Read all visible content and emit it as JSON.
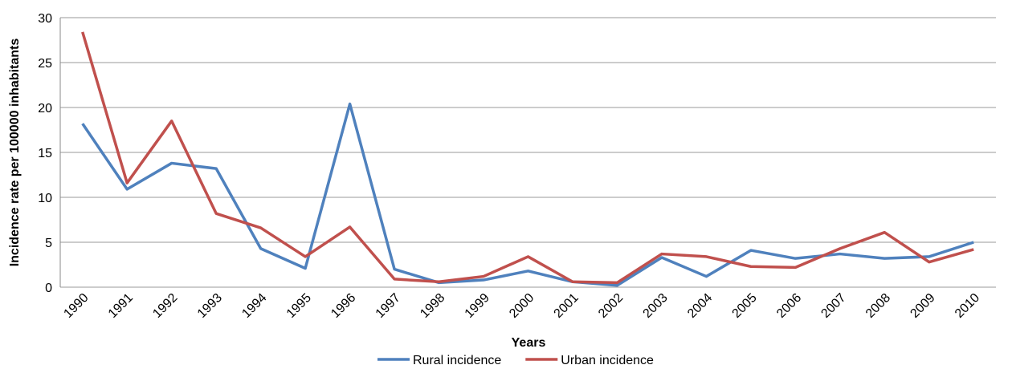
{
  "chart_data": {
    "type": "line",
    "x_label": "Years",
    "y_label": "Incidence rate per 100000 inhabitants",
    "categories": [
      "1990",
      "1991",
      "1992",
      "1993",
      "1994",
      "1995",
      "1996",
      "1997",
      "1998",
      "1999",
      "2000",
      "2001",
      "2002",
      "2003",
      "2004",
      "2005",
      "2006",
      "2007",
      "2008",
      "2009",
      "2010"
    ],
    "series": [
      {
        "name": "Rural incidence",
        "color": "#4f81bd",
        "values": [
          18.2,
          10.9,
          13.8,
          13.2,
          4.3,
          2.1,
          20.4,
          2.0,
          0.5,
          0.8,
          1.8,
          0.6,
          0.2,
          3.3,
          1.2,
          4.1,
          3.2,
          3.7,
          3.2,
          3.4,
          5.0
        ]
      },
      {
        "name": "Urban incidence",
        "color": "#c0504d",
        "values": [
          28.4,
          11.6,
          18.5,
          8.2,
          6.6,
          3.4,
          6.7,
          0.9,
          0.6,
          1.2,
          3.4,
          0.6,
          0.5,
          3.7,
          3.4,
          2.3,
          2.2,
          4.3,
          6.1,
          2.8,
          4.2
        ]
      }
    ],
    "ylim": [
      0,
      30
    ],
    "yticks": [
      0,
      5,
      10,
      15,
      20,
      25,
      30
    ],
    "grid": true,
    "legend": "bottom"
  }
}
